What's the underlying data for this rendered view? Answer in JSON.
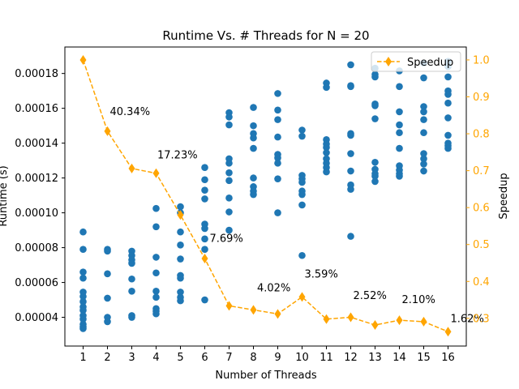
{
  "chart_data": {
    "type": "scatter",
    "title": "Runtime Vs. # Threads for N = 20",
    "xlabel": "Number of Threads",
    "ylabel": "Runtime (s)",
    "ylabel_right": "Speedup",
    "xticks": [
      1,
      2,
      3,
      4,
      5,
      6,
      7,
      8,
      9,
      10,
      11,
      12,
      13,
      14,
      15,
      16
    ],
    "xlim": [
      0.25,
      16.75
    ],
    "ylim": [
      2.35e-05,
      0.0001952
    ],
    "yticks": [
      4e-05,
      6e-05,
      8e-05,
      0.0001,
      0.00012,
      0.00014,
      0.00016,
      0.00018
    ],
    "ytick_labels": [
      "0.00004",
      "0.00006",
      "0.00008",
      "0.00010",
      "0.00012",
      "0.00014",
      "0.00016",
      "0.00018"
    ],
    "ylim_right": [
      0.225,
      1.035
    ],
    "yticks_right": [
      0.3,
      0.4,
      0.5,
      0.6,
      0.7,
      0.8,
      0.9,
      1.0
    ],
    "ytick_labels_right": [
      "0.3",
      "0.4",
      "0.5",
      "0.6",
      "0.7",
      "0.8",
      "0.9",
      "1.0"
    ],
    "runtime_points": [
      {
        "x": 1,
        "y": [
          8.9e-05,
          7.9e-05,
          6.6e-05,
          6.25e-05,
          5.45e-05,
          5.2e-05,
          4.9e-05,
          4.6e-05,
          4.4e-05,
          4.1e-05,
          3.9e-05,
          3.6e-05,
          3.45e-05,
          3.35e-05
        ]
      },
      {
        "x": 2,
        "y": [
          7.9e-05,
          7.8e-05,
          6.5e-05,
          5.1e-05,
          4e-05,
          3.75e-05
        ]
      },
      {
        "x": 3,
        "y": [
          7.8e-05,
          7.55e-05,
          7.3e-05,
          7.1e-05,
          6.2e-05,
          5.5e-05,
          4.1e-05,
          4e-05
        ]
      },
      {
        "x": 4,
        "y": [
          0.0001025,
          9.2e-05,
          7.45e-05,
          6.55e-05,
          5.5e-05,
          5.15e-05,
          4.5e-05,
          4.35e-05,
          4.2e-05
        ]
      },
      {
        "x": 5,
        "y": [
          0.0001035,
          0.0001,
          8.9e-05,
          8.15e-05,
          7.35e-05,
          6.4e-05,
          6.25e-05,
          5.45e-05,
          5.15e-05,
          4.95e-05
        ]
      },
      {
        "x": 6,
        "y": [
          0.000126,
          0.000119,
          0.000113,
          0.000108,
          9.35e-05,
          9.1e-05,
          8.5e-05,
          7.9e-05,
          5e-05
        ]
      },
      {
        "x": 7,
        "y": [
          0.0001575,
          0.000155,
          0.0001505,
          0.000131,
          0.0001285,
          0.000123,
          0.0001185,
          0.0001085,
          0.0001005,
          9e-05
        ]
      },
      {
        "x": 8,
        "y": [
          0.0001605,
          0.00015,
          0.0001455,
          0.000143,
          0.000137,
          0.00012,
          0.000115,
          0.0001125,
          0.0001105
        ]
      },
      {
        "x": 9,
        "y": [
          0.0001685,
          0.000159,
          0.0001535,
          0.0001435,
          0.0001335,
          0.0001315,
          0.0001285,
          0.0001195,
          0.0001
        ]
      },
      {
        "x": 10,
        "y": [
          0.0001475,
          0.000144,
          0.0001215,
          0.0001195,
          0.0001175,
          0.0001125,
          0.0001105,
          0.0001045,
          7.55e-05
        ]
      },
      {
        "x": 11,
        "y": [
          0.0001745,
          0.000172,
          0.000142,
          0.0001395,
          0.0001375,
          0.0001345,
          0.000131,
          0.0001285,
          0.000126,
          0.0001235
        ]
      },
      {
        "x": 12,
        "y": [
          0.000185,
          0.000173,
          0.0001725,
          0.0001455,
          0.0001445,
          0.000134,
          0.000124,
          0.000116,
          0.0001135,
          8.65e-05
        ]
      },
      {
        "x": 13,
        "y": [
          0.000183,
          0.0001795,
          0.000178,
          0.0001625,
          0.0001615,
          0.000154,
          0.000129,
          0.000125,
          0.0001225,
          0.000121,
          0.000118
        ]
      },
      {
        "x": 14,
        "y": [
          0.0001815,
          0.0001725,
          0.000158,
          0.0001505,
          0.000146,
          0.000137,
          0.000127,
          0.0001245,
          0.0001225,
          0.000121
        ]
      },
      {
        "x": 15,
        "y": [
          0.000186,
          0.0001775,
          0.000161,
          0.000158,
          0.0001535,
          0.000146,
          0.000134,
          0.000131,
          0.000128,
          0.000124
        ]
      },
      {
        "x": 16,
        "y": [
          0.000187,
          0.000184,
          0.000178,
          0.00017,
          0.000168,
          0.000163,
          0.0001545,
          0.0001445,
          0.00014,
          0.0001385,
          0.000137
        ]
      }
    ],
    "speedup_series": {
      "name": "Speedup",
      "x": [
        1,
        2,
        3,
        4,
        5,
        6,
        7,
        8,
        9,
        10,
        11,
        12,
        13,
        14,
        15,
        16
      ],
      "y": [
        1.0,
        0.807,
        0.706,
        0.693,
        0.58,
        0.462,
        0.334,
        0.323,
        0.312,
        0.358,
        0.298,
        0.303,
        0.282,
        0.295,
        0.291,
        0.264
      ]
    },
    "annotations": [
      {
        "text": "40.34%",
        "x": 2.1,
        "y": 0.00015824
      },
      {
        "text": "17.23%",
        "x": 4.05,
        "y": 0.0001333
      },
      {
        "text": "7.69%",
        "x": 6.2,
        "y": 8.537e-05
      },
      {
        "text": "4.02%",
        "x": 8.15,
        "y": 5.709e-05
      },
      {
        "text": "3.59%",
        "x": 10.1,
        "y": 6.485e-05
      },
      {
        "text": "2.52%",
        "x": 12.1,
        "y": 5.255e-05
      },
      {
        "text": "2.10%",
        "x": 14.1,
        "y": 5.027e-05
      },
      {
        "text": "1.62%",
        "x": 16.1,
        "y": 3.934e-05
      }
    ],
    "legend": {
      "position": "top-right",
      "entries": [
        "Speedup"
      ]
    },
    "grid": false,
    "colors": {
      "runtime": "#1f77b4",
      "speedup": "#ffa500",
      "axis": "#000000"
    }
  }
}
